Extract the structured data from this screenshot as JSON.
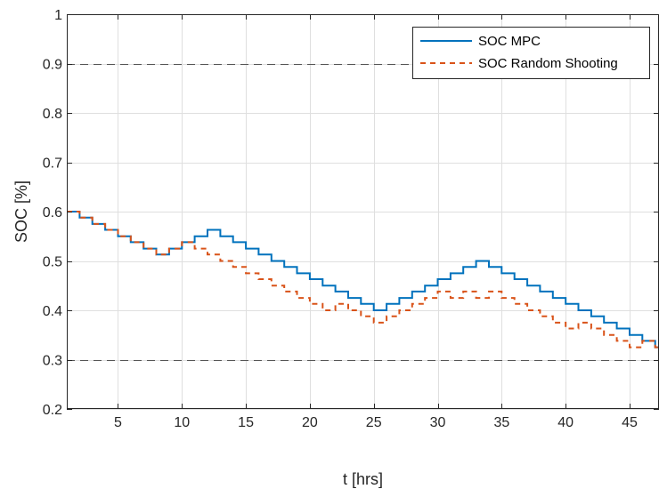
{
  "chart_data": {
    "type": "line",
    "xlabel": "t [hrs]",
    "ylabel": "SOC [%]",
    "xlim": [
      1,
      47.3
    ],
    "ylim": [
      0.2,
      1
    ],
    "xticks": [
      5,
      10,
      15,
      20,
      25,
      30,
      35,
      40,
      45
    ],
    "yticks": [
      0.2,
      0.3,
      0.4,
      0.5,
      0.6,
      0.7,
      0.8,
      0.9,
      1
    ],
    "ytick_labels": [
      "0.2",
      "0.3",
      "0.4",
      "0.5",
      "0.6",
      "0.7",
      "0.8",
      "0.9",
      "1"
    ],
    "grid": true,
    "legend_position": "top-right",
    "reference_lines": [
      0.3,
      0.9
    ],
    "x": [
      1,
      2,
      3,
      4,
      5,
      6,
      7,
      8,
      9,
      10,
      11,
      12,
      13,
      14,
      15,
      16,
      17,
      18,
      19,
      20,
      21,
      22,
      23,
      24,
      25,
      26,
      27,
      28,
      29,
      30,
      31,
      32,
      33,
      34,
      35,
      36,
      37,
      38,
      39,
      40,
      41,
      42,
      43,
      44,
      45,
      46,
      47
    ],
    "series": [
      {
        "name": "SOC MPC",
        "color": "#0072BD",
        "style": "solid",
        "values": [
          0.6,
          0.588,
          0.575,
          0.563,
          0.55,
          0.538,
          0.525,
          0.513,
          0.525,
          0.538,
          0.55,
          0.563,
          0.55,
          0.538,
          0.525,
          0.513,
          0.5,
          0.488,
          0.475,
          0.463,
          0.45,
          0.438,
          0.425,
          0.413,
          0.4,
          0.413,
          0.425,
          0.438,
          0.45,
          0.463,
          0.475,
          0.488,
          0.5,
          0.488,
          0.475,
          0.463,
          0.45,
          0.438,
          0.425,
          0.413,
          0.4,
          0.388,
          0.375,
          0.363,
          0.35,
          0.338,
          0.325
        ]
      },
      {
        "name": "SOC Random Shooting",
        "color": "#D95319",
        "style": "dashed",
        "values": [
          0.6,
          0.588,
          0.575,
          0.563,
          0.55,
          0.538,
          0.525,
          0.513,
          0.525,
          0.538,
          0.525,
          0.513,
          0.5,
          0.488,
          0.475,
          0.463,
          0.45,
          0.438,
          0.425,
          0.413,
          0.4,
          0.413,
          0.4,
          0.388,
          0.375,
          0.388,
          0.4,
          0.413,
          0.425,
          0.438,
          0.425,
          0.438,
          0.425,
          0.438,
          0.425,
          0.413,
          0.4,
          0.388,
          0.375,
          0.363,
          0.375,
          0.363,
          0.35,
          0.338,
          0.325,
          0.338,
          0.325
        ]
      }
    ]
  }
}
